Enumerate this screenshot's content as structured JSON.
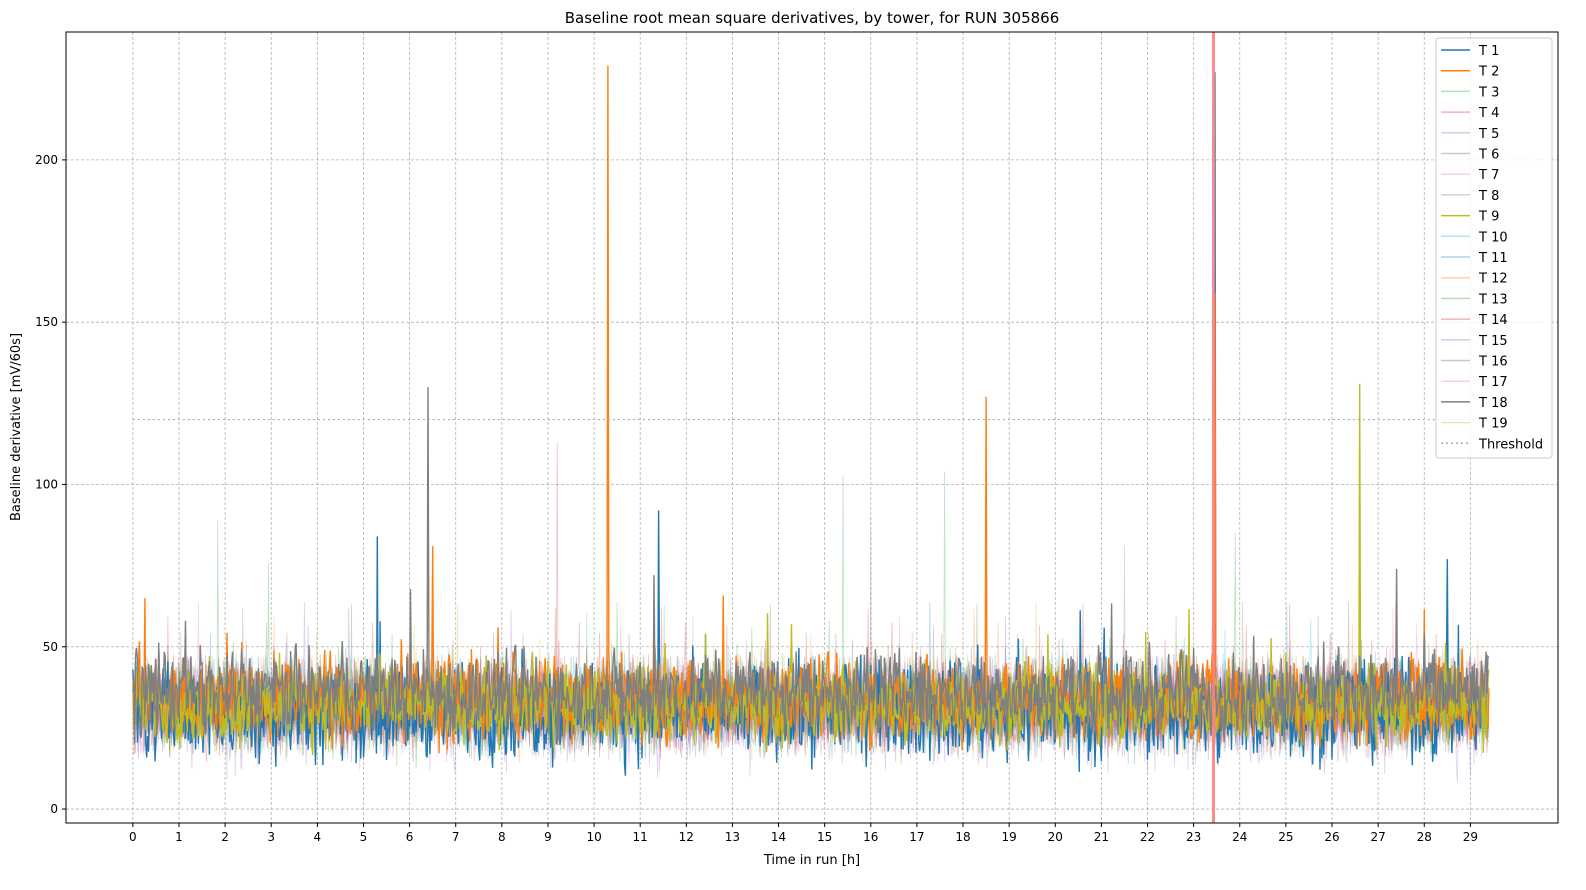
{
  "chart_data": {
    "type": "line",
    "title": "Baseline root mean square derivatives, by tower, for RUN 305866",
    "xlabel": "Time in run [h]",
    "ylabel": "Baseline derivative [mV/60s]",
    "xlim": [
      -1.45,
      30.9
    ],
    "ylim": [
      -4.3,
      239.4
    ],
    "xticks": [
      "0",
      "1",
      "2",
      "3",
      "4",
      "5",
      "6",
      "7",
      "8",
      "9",
      "10",
      "11",
      "12",
      "13",
      "14",
      "15",
      "16",
      "17",
      "18",
      "19",
      "20",
      "21",
      "22",
      "23",
      "24",
      "25",
      "26",
      "27",
      "28",
      "29"
    ],
    "yticks": [
      "0",
      "50",
      "100",
      "150",
      "200"
    ],
    "grid": true,
    "legend_position": "top-right",
    "data_range_h": [
      0,
      29.4
    ],
    "threshold": {
      "name": "Threshold",
      "value": 120,
      "color": "#aaaaaa"
    },
    "marker_line": {
      "x": 23.43,
      "color": "#ff8080"
    },
    "series": [
      {
        "name": "T 1",
        "color": "#1f77b4",
        "alpha": 1,
        "mean": 30,
        "spread": 9,
        "spikes": [
          [
            5.3,
            84
          ],
          [
            11.4,
            92
          ],
          [
            23.45,
            227
          ],
          [
            28.5,
            77
          ]
        ]
      },
      {
        "name": "T 2",
        "color": "#ff7f0e",
        "alpha": 1,
        "mean": 34,
        "spread": 8,
        "spikes": [
          [
            10.3,
            229
          ],
          [
            18.5,
            127
          ],
          [
            23.45,
            159
          ],
          [
            6.5,
            81
          ]
        ]
      },
      {
        "name": "T 3",
        "color": "#2ca02c",
        "alpha": 0.3,
        "mean": 32,
        "spread": 9,
        "spikes": [
          [
            1.85,
            89
          ],
          [
            15.4,
            103
          ],
          [
            17.6,
            104
          ]
        ]
      },
      {
        "name": "T 4",
        "color": "#d62728",
        "alpha": 0.3,
        "mean": 32,
        "spread": 8,
        "spikes": [
          [
            9.2,
            113
          ]
        ]
      },
      {
        "name": "T 5",
        "color": "#9467bd",
        "alpha": 0.3,
        "mean": 28,
        "spread": 9,
        "spikes": [
          [
            16,
            90
          ],
          [
            21.5,
            81
          ]
        ]
      },
      {
        "name": "T 6",
        "color": "#8c564b",
        "alpha": 0.3,
        "mean": 32,
        "spread": 8,
        "spikes": []
      },
      {
        "name": "T 7",
        "color": "#e377c2",
        "alpha": 0.3,
        "mean": 32,
        "spread": 8,
        "spikes": []
      },
      {
        "name": "T 8",
        "color": "#7f7f7f",
        "alpha": 0.3,
        "mean": 32,
        "spread": 8,
        "spikes": []
      },
      {
        "name": "T 9",
        "color": "#bcbd22",
        "alpha": 1,
        "mean": 32,
        "spread": 7,
        "spikes": [
          [
            26.6,
            131
          ]
        ]
      },
      {
        "name": "T 10",
        "color": "#17becf",
        "alpha": 0.3,
        "mean": 33,
        "spread": 8,
        "spikes": []
      },
      {
        "name": "T 11",
        "color": "#1f77b4",
        "alpha": 0.3,
        "mean": 32,
        "spread": 8,
        "spikes": []
      },
      {
        "name": "T 12",
        "color": "#ff7f0e",
        "alpha": 0.3,
        "mean": 32,
        "spread": 8,
        "spikes": []
      },
      {
        "name": "T 13",
        "color": "#2ca02c",
        "alpha": 0.3,
        "mean": 32,
        "spread": 8,
        "spikes": [
          [
            23.9,
            85
          ]
        ]
      },
      {
        "name": "T 14",
        "color": "#d62728",
        "alpha": 0.3,
        "mean": 32,
        "spread": 8,
        "spikes": []
      },
      {
        "name": "T 15",
        "color": "#9467bd",
        "alpha": 0.3,
        "mean": 32,
        "spread": 8,
        "spikes": []
      },
      {
        "name": "T 16",
        "color": "#8c564b",
        "alpha": 0.3,
        "mean": 32,
        "spread": 8,
        "spikes": []
      },
      {
        "name": "T 17",
        "color": "#e377c2",
        "alpha": 0.3,
        "mean": 32,
        "spread": 8,
        "spikes": []
      },
      {
        "name": "T 18",
        "color": "#7f7f7f",
        "alpha": 1,
        "mean": 36,
        "spread": 8,
        "spikes": [
          [
            6.4,
            130
          ],
          [
            11.3,
            72
          ],
          [
            27.4,
            74
          ]
        ]
      },
      {
        "name": "T 19",
        "color": "#bcbd22",
        "alpha": 0.3,
        "mean": 32,
        "spread": 8,
        "spikes": []
      }
    ]
  }
}
